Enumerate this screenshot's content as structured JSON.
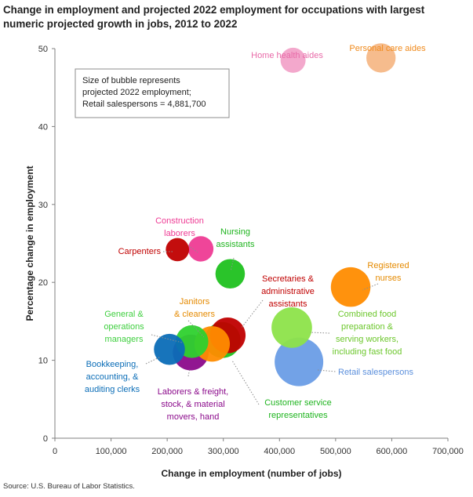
{
  "title": "Change in employment and projected 2022 employment for occupations with largest numeric projected growth in jobs, 2012 to 2022",
  "source": "Source: U.S. Bureau of Labor Statistics.",
  "chart_data": {
    "type": "scatter",
    "subtype": "bubble",
    "xlabel": "Change in employment (number of jobs)",
    "ylabel": "Percentage change in employment",
    "xlim": [
      0,
      700000
    ],
    "ylim": [
      0,
      50
    ],
    "x_ticks": [
      "0",
      "100,000",
      "200,000",
      "300,000",
      "400,000",
      "500,000",
      "600,000",
      "700,000"
    ],
    "y_ticks": [
      "0",
      "10",
      "20",
      "30",
      "40",
      "50"
    ],
    "grid": false,
    "note": [
      "Size of bubble represents",
      "projected 2022 employment;",
      "Retail salespersons = 4,881,700"
    ],
    "series": [
      {
        "name": "Personal care aides",
        "label": [
          "Personal care aides"
        ],
        "x": 580800,
        "y": 48.8,
        "size": 1771400,
        "color": "#f5b887",
        "label_color": "#f08a1c"
      },
      {
        "name": "Home health aides",
        "label": [
          "Home health aides"
        ],
        "x": 424200,
        "y": 48.5,
        "size": 1299300,
        "color": "#f2a3c9",
        "label_color": "#e86aa8"
      },
      {
        "name": "Carpenters",
        "label": [
          "Carpenters"
        ],
        "x": 218200,
        "y": 24.2,
        "size": 1119400,
        "color": "#c00000",
        "label_color": "#c00000"
      },
      {
        "name": "Construction laborers",
        "label": [
          "Construction",
          "laborers"
        ],
        "x": 259800,
        "y": 24.3,
        "size": 1331000,
        "color": "#ee3b94",
        "label_color": "#ee3b94"
      },
      {
        "name": "Nursing assistants",
        "label": [
          "Nursing",
          "assistants"
        ],
        "x": 312200,
        "y": 21.1,
        "size": 1792000,
        "color": "#1fc11f",
        "label_color": "#1fb41f"
      },
      {
        "name": "Registered nurses",
        "label": [
          "Registered",
          "nurses"
        ],
        "x": 526800,
        "y": 19.4,
        "size": 3238400,
        "color": "#ff8c00",
        "label_color": "#e58a00"
      },
      {
        "name": "Secretaries & administrative assistants",
        "label": [
          "Secretaries &",
          "administrative",
          "assistants"
        ],
        "x": 307800,
        "y": 13.2,
        "size": 2632500,
        "color": "#c00000",
        "label_color": "#c00000"
      },
      {
        "name": "Combined food preparation & serving workers, including fast food",
        "label": [
          "Combined food",
          "preparation &",
          "serving workers,",
          "including fast food"
        ],
        "x": 421900,
        "y": 14.2,
        "size": 3391400,
        "color": "#8de34a",
        "label_color": "#6cc72c"
      },
      {
        "name": "General & operations managers",
        "label": [
          "General &",
          "operations",
          "managers"
        ],
        "x": 244100,
        "y": 12.4,
        "size": 2217700,
        "color": "#2ed12e",
        "label_color": "#3fcf3f"
      },
      {
        "name": "Janitors & cleaners",
        "label": [
          "Janitors",
          "& cleaners"
        ],
        "x": 280000,
        "y": 12.1,
        "size": 2604400,
        "color": "#ff8c00",
        "label_color": "#e58a00"
      },
      {
        "name": "Customer service representatives",
        "label": [
          "Customer service",
          "representatives"
        ],
        "x": 298700,
        "y": 12.6,
        "size": 2661400,
        "color": "#1fc11f",
        "label_color": "#1fb41f"
      },
      {
        "name": "Bookkeeping, accounting, & auditing clerks",
        "label": [
          "Bookkeeping,",
          "accounting, &",
          "auditing clerks"
        ],
        "x": 204000,
        "y": 11.4,
        "size": 1983000,
        "color": "#0b6db7",
        "label_color": "#0b6db7"
      },
      {
        "name": "Laborers & freight, stock, & material movers, hand",
        "label": [
          "Laborers & freight,",
          "stock, & material",
          "movers, hand"
        ],
        "x": 241900,
        "y": 11.0,
        "size": 2648800,
        "color": "#8b0a8b",
        "label_color": "#8b0a8b"
      },
      {
        "name": "Retail salespersons",
        "label": [
          "Retail salespersons"
        ],
        "x": 434700,
        "y": 9.8,
        "size": 4881700,
        "color": "#6a9de6",
        "label_color": "#5b8fdc"
      }
    ]
  }
}
